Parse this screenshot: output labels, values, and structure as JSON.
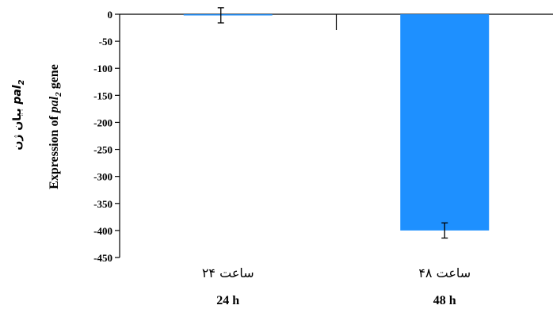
{
  "chart_data": {
    "type": "bar",
    "categories": [
      "24 h",
      "48 h"
    ],
    "categories_fa": [
      "۲۴ ساعت",
      "۴۸ ساعت"
    ],
    "values": [
      -2,
      -400
    ],
    "error": [
      14,
      14
    ],
    "ylim": [
      -450,
      0
    ],
    "yticks": [
      0,
      -50,
      -100,
      -150,
      -200,
      -250,
      -300,
      -350,
      -400,
      -450
    ],
    "ylabel_en_prefix": "Expression of",
    "ylabel_en_gene": "pal",
    "ylabel_en_sub": "2",
    "ylabel_en_suffix": " gene",
    "ylabel_fa_prefix": "بیان ژن",
    "ylabel_fa_gene": "pal",
    "ylabel_fa_sub": "2",
    "bar_color": "#1e90ff",
    "grid": false
  }
}
